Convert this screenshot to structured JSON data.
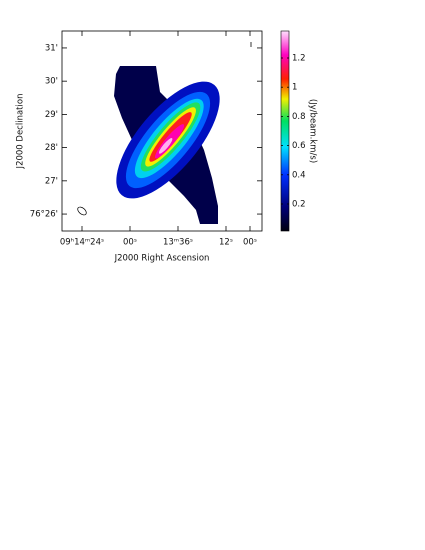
{
  "chart_data": {
    "type": "image",
    "xlabel": "J2000 Right Ascension",
    "ylabel": "J2000 Declination",
    "xlim": [
      874,
      774
    ],
    "xticks": [
      {
        "value": 864,
        "label": "09ʰ14ᵐ24ˢ"
      },
      {
        "value": 840,
        "label": "00ˢ"
      },
      {
        "value": 816,
        "label": "13ᵐ36ˢ"
      },
      {
        "value": 792,
        "label": "12ˢ"
      },
      {
        "value": 780,
        "label": "00ˢ"
      }
    ],
    "ylim": [
      25.49,
      31.51
    ],
    "yticks": [
      {
        "value": 26,
        "label": "76°26'"
      },
      {
        "value": 27,
        "label": "27'"
      },
      {
        "value": 28,
        "label": "28'"
      },
      {
        "value": 29,
        "label": "29'"
      },
      {
        "value": 30,
        "label": "30'"
      },
      {
        "value": 31,
        "label": "31'"
      }
    ],
    "colorbar": {
      "label": "(Jy/beam.km/s)",
      "lim": [
        0.015,
        1.385
      ],
      "ticks": [
        0.2,
        0.4,
        0.6,
        0.8,
        1,
        1.2
      ]
    }
  }
}
